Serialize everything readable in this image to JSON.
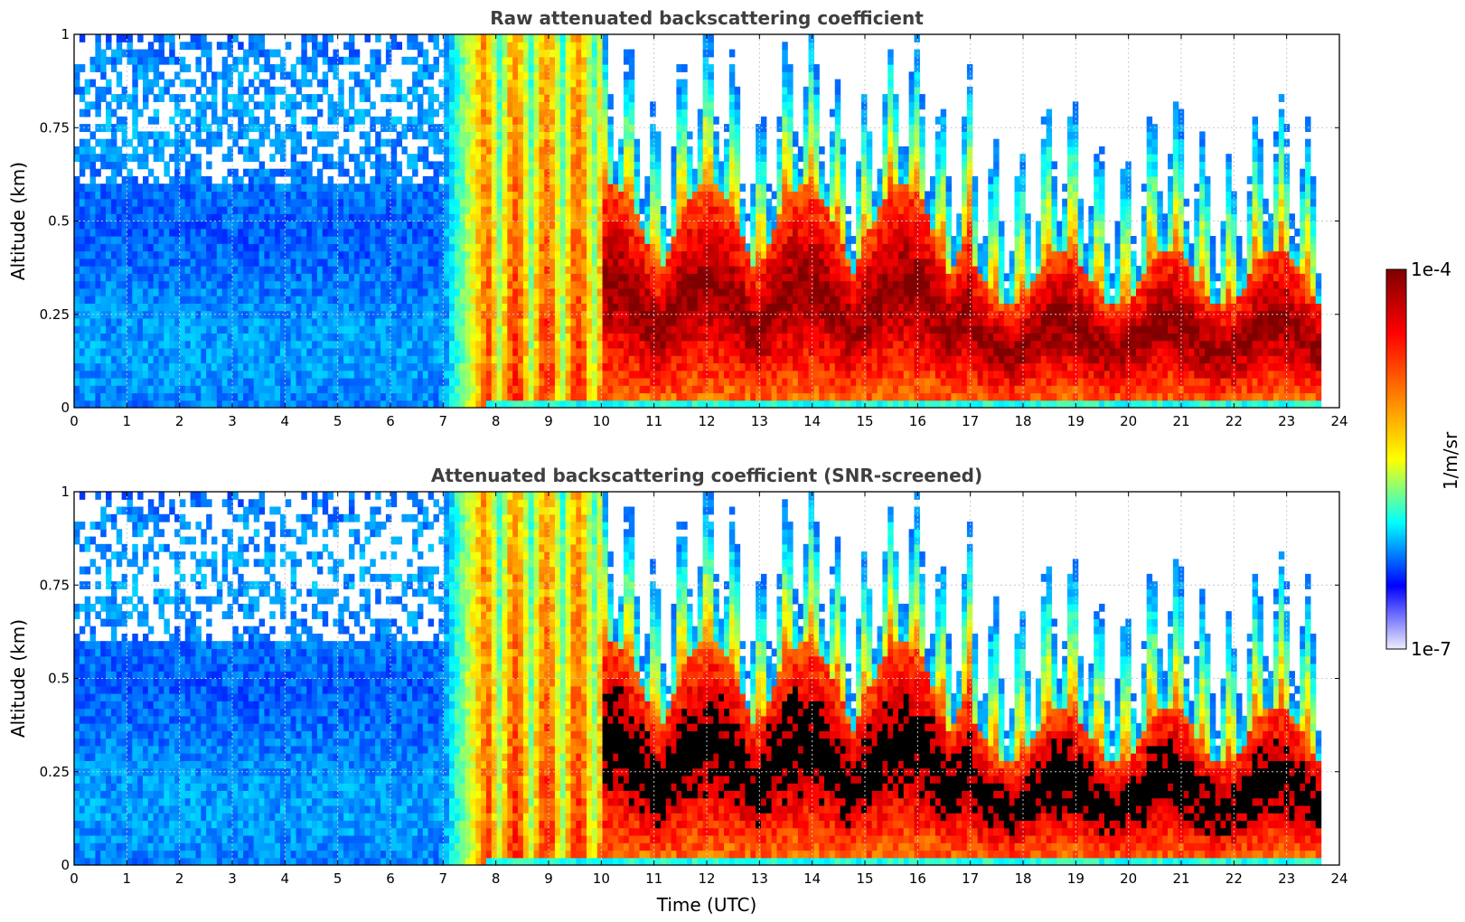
{
  "chart_data": [
    {
      "type": "heatmap",
      "title": "Raw attenuated backscattering coefficient",
      "xlabel": "",
      "ylabel": "Altitude (km)",
      "xlim": [
        0,
        24
      ],
      "ylim": [
        0,
        1
      ],
      "xticks": [
        "0",
        "1",
        "2",
        "3",
        "4",
        "5",
        "6",
        "7",
        "8",
        "9",
        "10",
        "11",
        "12",
        "13",
        "14",
        "15",
        "16",
        "17",
        "18",
        "19",
        "20",
        "21",
        "22",
        "23",
        "24"
      ],
      "yticks": [
        "0",
        "0.25",
        "0.5",
        "0.75",
        "1"
      ],
      "data_end_hour": 23.65,
      "grid": true,
      "screened": false
    },
    {
      "type": "heatmap",
      "title": "Attenuated backscattering coefficient (SNR-screened)",
      "xlabel": "Time (UTC)",
      "ylabel": "Altitude (km)",
      "xlim": [
        0,
        24
      ],
      "ylim": [
        0,
        1
      ],
      "xticks": [
        "0",
        "1",
        "2",
        "3",
        "4",
        "5",
        "6",
        "7",
        "8",
        "9",
        "10",
        "11",
        "12",
        "13",
        "14",
        "15",
        "16",
        "17",
        "18",
        "19",
        "20",
        "21",
        "22",
        "23",
        "24"
      ],
      "yticks": [
        "0",
        "0.25",
        "0.5",
        "0.75",
        "1"
      ],
      "data_end_hour": 23.65,
      "grid": true,
      "screened": true
    }
  ],
  "colorbar": {
    "label": "1/m/sr",
    "max_label": "1e-4",
    "min_label": "1e-7",
    "scale": "log",
    "colors": [
      "#eeeefc",
      "#0000ff",
      "#00ffff",
      "#ffff00",
      "#ff7f00",
      "#ff0000",
      "#7f0000"
    ]
  }
}
